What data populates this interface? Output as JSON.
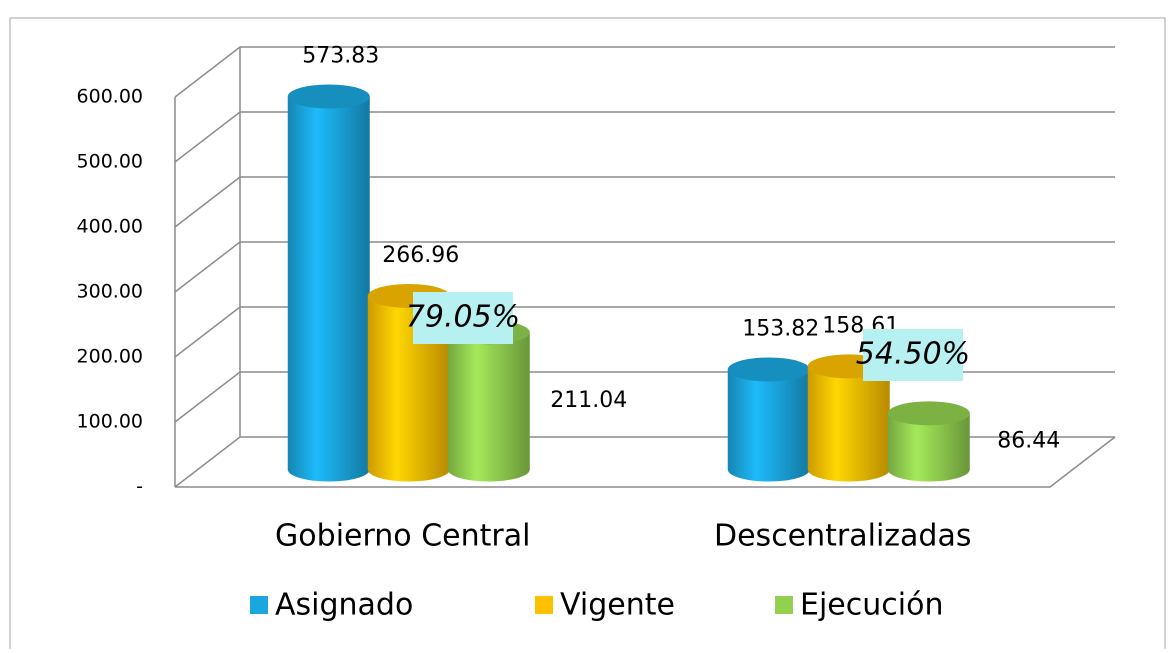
{
  "chart_data": {
    "type": "bar3d",
    "categories": [
      "Gobierno Central",
      "Descentralizadas"
    ],
    "series": [
      {
        "name": "Asignado",
        "color": "#1aa7e0",
        "values": [
          573.83,
          153.82
        ]
      },
      {
        "name": "Vigente",
        "color": "#ffc000",
        "values": [
          266.96,
          158.61
        ]
      },
      {
        "name": "Ejecución",
        "color": "#92d050",
        "values": [
          211.04,
          86.44
        ]
      }
    ],
    "ylim": [
      0,
      600
    ],
    "yticks": [
      {
        "value": 0,
        "label": "-"
      },
      {
        "value": 100,
        "label": "100.00"
      },
      {
        "value": 200,
        "label": "200.00"
      },
      {
        "value": 300,
        "label": "300.00"
      },
      {
        "value": 400,
        "label": "400.00"
      },
      {
        "value": 500,
        "label": "500.00"
      },
      {
        "value": 600,
        "label": "600.00"
      }
    ],
    "annotations": [
      "79.05%",
      "54.50%"
    ],
    "grid": true,
    "legend": "bottom"
  }
}
